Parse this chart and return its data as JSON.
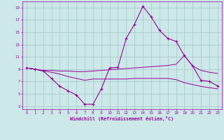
{
  "xlabel": "Windchill (Refroidissement éolien,°C)",
  "bg_color": "#cce8e8",
  "line_color": "#990099",
  "grid_color": "#aacccc",
  "xlim": [
    -0.5,
    23.5
  ],
  "ylim": [
    2.5,
    20.0
  ],
  "xticks": [
    0,
    1,
    2,
    3,
    4,
    5,
    6,
    7,
    8,
    9,
    10,
    11,
    12,
    13,
    14,
    15,
    16,
    17,
    18,
    19,
    20,
    21,
    22,
    23
  ],
  "yticks": [
    3,
    5,
    7,
    9,
    11,
    13,
    15,
    17,
    19
  ],
  "line1_x": [
    0,
    1,
    2,
    3,
    4,
    5,
    6,
    7,
    8,
    9,
    10,
    11,
    12,
    13,
    14,
    15,
    16,
    17,
    18,
    19,
    20,
    21,
    22,
    23
  ],
  "line1_y": [
    9.2,
    9.0,
    8.7,
    7.5,
    6.2,
    5.5,
    4.8,
    3.3,
    3.3,
    5.8,
    9.2,
    9.3,
    14.0,
    16.3,
    19.2,
    17.5,
    15.3,
    14.0,
    13.5,
    11.2,
    9.5,
    7.2,
    7.0,
    6.3
  ],
  "line2_x": [
    0,
    1,
    2,
    3,
    4,
    5,
    6,
    7,
    8,
    9,
    10,
    11,
    12,
    13,
    14,
    15,
    16,
    17,
    18,
    19,
    20,
    21,
    22,
    23
  ],
  "line2_y": [
    9.2,
    9.0,
    8.8,
    8.8,
    8.7,
    8.7,
    8.6,
    8.6,
    8.7,
    8.8,
    8.9,
    9.0,
    9.1,
    9.2,
    9.3,
    9.4,
    9.5,
    9.6,
    9.8,
    11.2,
    9.5,
    8.8,
    8.5,
    8.3
  ],
  "line3_x": [
    0,
    1,
    2,
    3,
    4,
    5,
    6,
    7,
    8,
    9,
    10,
    11,
    12,
    13,
    14,
    15,
    16,
    17,
    18,
    19,
    20,
    21,
    22,
    23
  ],
  "line3_y": [
    9.2,
    9.0,
    8.7,
    8.5,
    8.2,
    7.8,
    7.5,
    7.2,
    7.4,
    7.4,
    7.4,
    7.4,
    7.4,
    7.5,
    7.5,
    7.5,
    7.5,
    7.5,
    7.3,
    6.8,
    6.5,
    6.2,
    6.0,
    5.8
  ]
}
